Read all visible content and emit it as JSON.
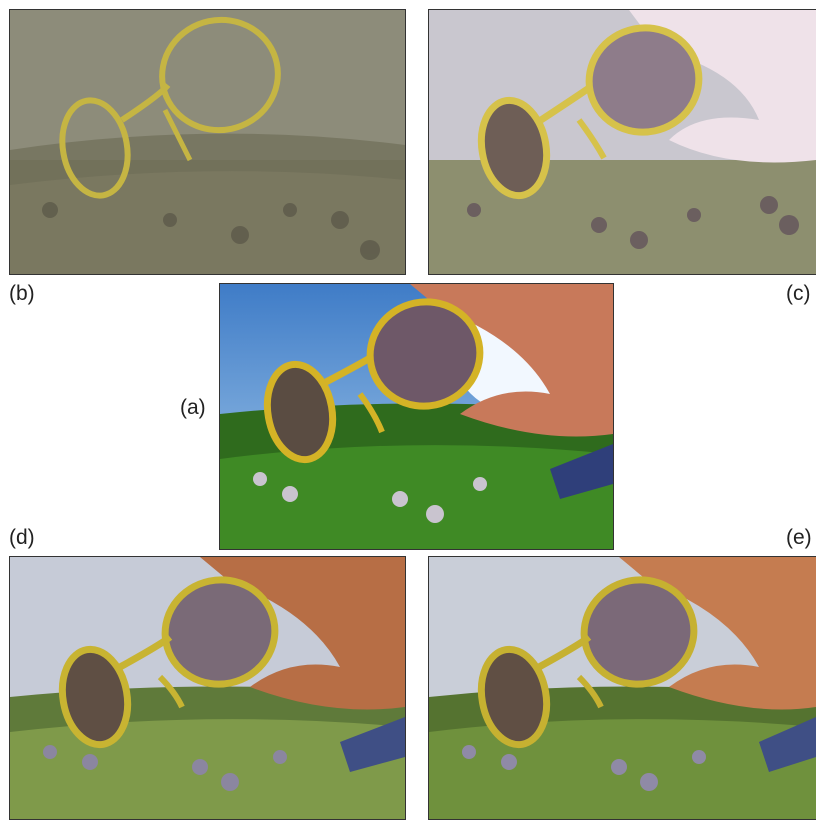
{
  "figure": {
    "labels": {
      "a": "(a)",
      "b": "(b)",
      "c": "(c)",
      "d": "(d)",
      "e": "(e)"
    },
    "panels": [
      {
        "id": "b",
        "tone": "gray-detail",
        "sky": "#8d8c7a",
        "grass": "#7a7860",
        "frame": "#c5b543",
        "hand": "#9f9b87"
      },
      {
        "id": "c",
        "tone": "desaturated",
        "sky": "#c9c7cf",
        "grass": "#8d8f6f",
        "frame": "#d6c24a",
        "hand": "#efe2e9"
      },
      {
        "id": "a",
        "tone": "original",
        "sky": "#5c94d6",
        "grass": "#3f8a25",
        "frame": "#d4b326",
        "hand": "#c8795a"
      },
      {
        "id": "d",
        "tone": "hazy",
        "sky": "#c6cbd7",
        "grass": "#7f9a4a",
        "frame": "#c8b432",
        "hand": "#b76e45"
      },
      {
        "id": "e",
        "tone": "balanced",
        "sky": "#c9ced8",
        "grass": "#6f913d",
        "frame": "#c6b131",
        "hand": "#c57c50"
      }
    ]
  }
}
